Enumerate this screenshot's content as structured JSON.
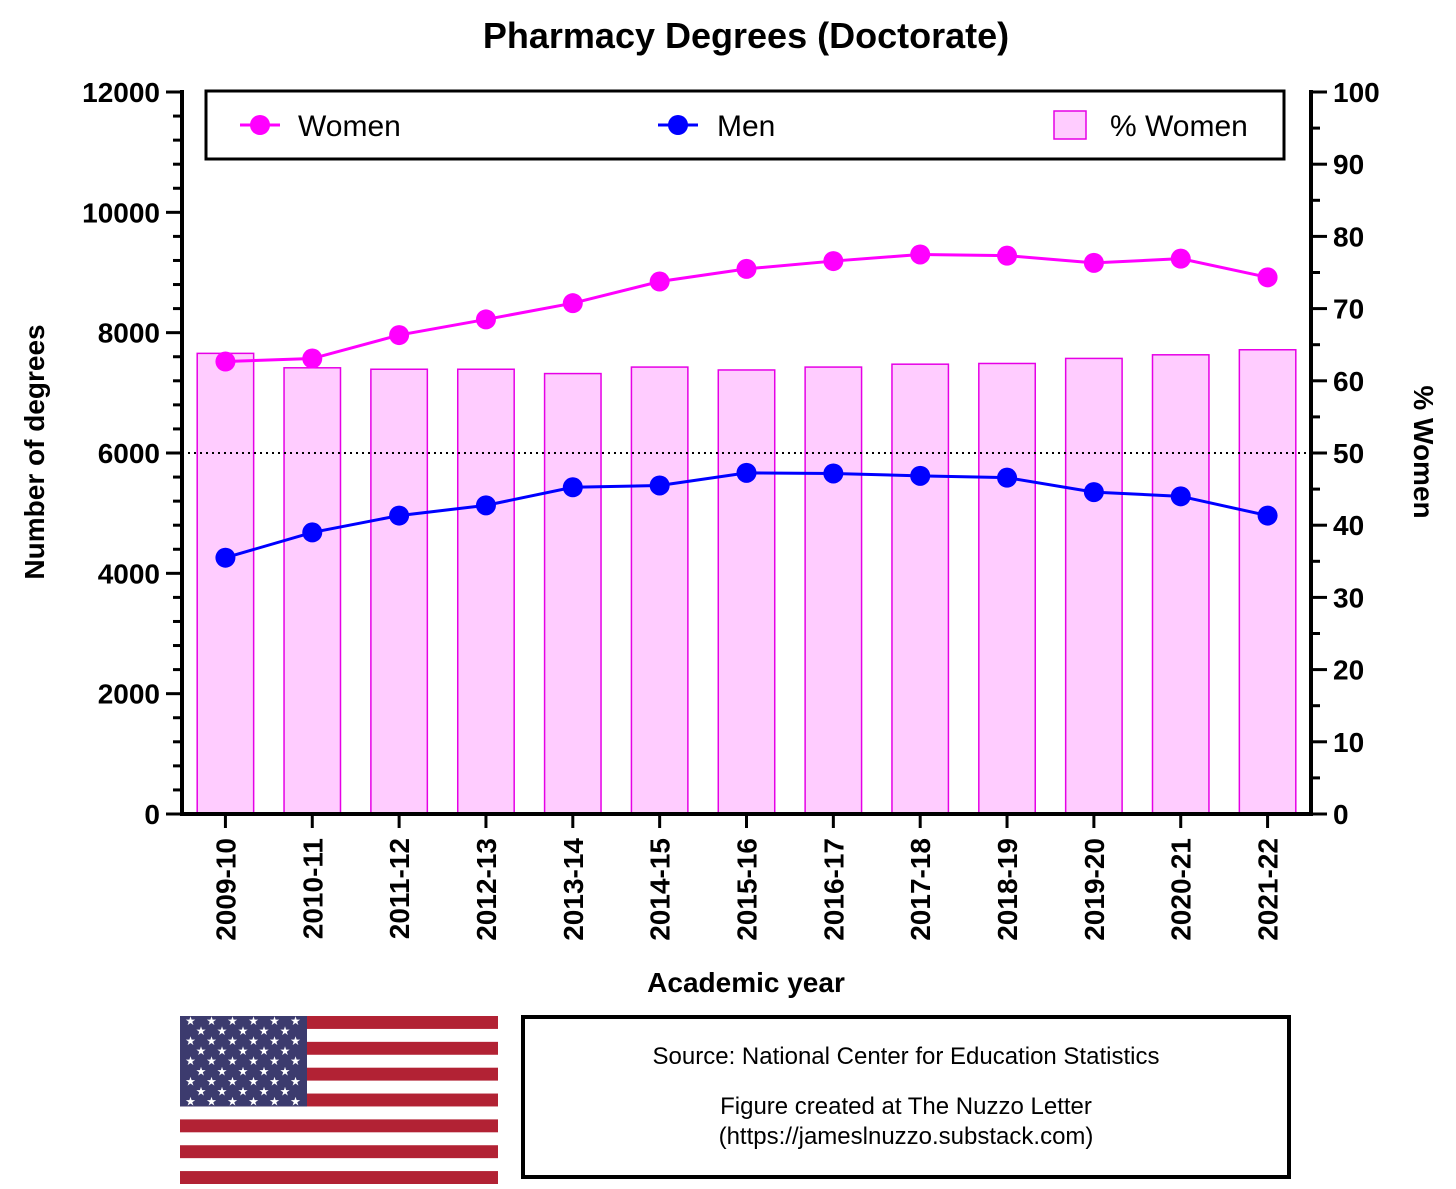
{
  "chart_data": {
    "type": "bar+line",
    "title": "Pharmacy Degrees (Doctorate)",
    "xlabel": "Academic year",
    "ylabel": "Number of degrees",
    "y2label": "% Women",
    "ylim": [
      0,
      12000
    ],
    "y_ticks": [
      0,
      2000,
      4000,
      6000,
      8000,
      10000,
      12000
    ],
    "y2lim": [
      0,
      100
    ],
    "y2_ticks": [
      0,
      10,
      20,
      30,
      40,
      50,
      60,
      70,
      80,
      90,
      100
    ],
    "reference_line": {
      "axis": "y2",
      "value": 50,
      "style": "dotted"
    },
    "categories": [
      "2009-10",
      "2010-11",
      "2011-12",
      "2012-13",
      "2013-14",
      "2014-15",
      "2015-16",
      "2016-17",
      "2017-18",
      "2018-19",
      "2019-20",
      "2020-21",
      "2021-22"
    ],
    "series": [
      {
        "name": "Women",
        "type": "line",
        "axis": "y",
        "color": "#ff00ff",
        "values": [
          7520,
          7570,
          7960,
          8220,
          8490,
          8850,
          9060,
          9190,
          9300,
          9280,
          9160,
          9230,
          8920
        ]
      },
      {
        "name": "Men",
        "type": "line",
        "axis": "y",
        "color": "#0000ff",
        "values": [
          4260,
          4680,
          4960,
          5130,
          5430,
          5460,
          5670,
          5660,
          5620,
          5590,
          5350,
          5280,
          4960
        ]
      },
      {
        "name": "% Women",
        "type": "bar",
        "axis": "y2",
        "color": "#ffccff",
        "edge_color": "#e600e6",
        "values": [
          63.8,
          61.8,
          61.6,
          61.6,
          61.0,
          61.9,
          61.5,
          61.9,
          62.3,
          62.4,
          63.1,
          63.6,
          64.3
        ]
      }
    ],
    "legend_position": "top"
  },
  "footer": {
    "source": "Source: National Center for Education Statistics",
    "credit": "Figure created at The Nuzzo Letter",
    "url": "(https://jameslnuzzo.substack.com)"
  },
  "flag": {
    "name": "us-flag-icon",
    "red": "#b22234",
    "blue": "#3c3b6e"
  }
}
